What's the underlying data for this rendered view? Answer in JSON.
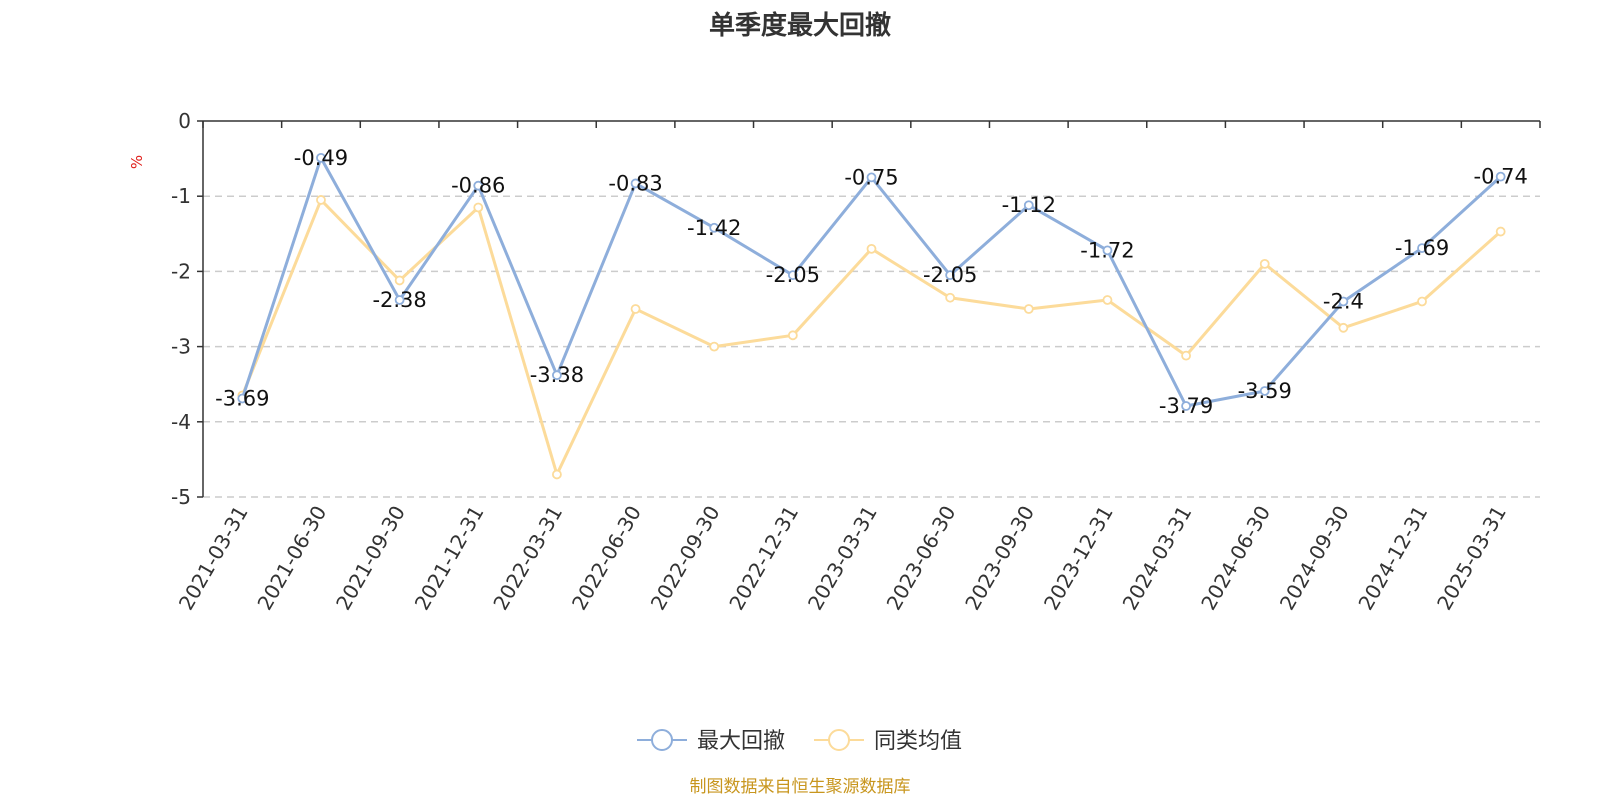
{
  "chart_data": {
    "type": "line",
    "title": "单季度最大回撤",
    "ylabel": "%",
    "ylim": [
      -5,
      0
    ],
    "yticks": [
      "0",
      "-1",
      "-2",
      "-3",
      "-4",
      "-5"
    ],
    "categories": [
      "2021-03-31",
      "2021-06-30",
      "2021-09-30",
      "2021-12-31",
      "2022-03-31",
      "2022-06-30",
      "2022-09-30",
      "2022-12-31",
      "2023-03-31",
      "2023-06-30",
      "2023-09-30",
      "2023-12-31",
      "2024-03-31",
      "2024-06-30",
      "2024-09-30",
      "2024-12-31",
      "2025-03-31"
    ],
    "series": [
      {
        "name": "最大回撤",
        "color": "#8eaedb",
        "values": [
          -3.69,
          -0.49,
          -2.38,
          -0.86,
          -3.38,
          -0.83,
          -1.42,
          -2.05,
          -0.75,
          -2.05,
          -1.12,
          -1.72,
          -3.79,
          -3.59,
          -2.4,
          -1.69,
          -0.74
        ],
        "labels": [
          "-3.69",
          "-0.49",
          "-2.38",
          "-0.86",
          "-3.38",
          "-0.83",
          "-1.42",
          "-2.05",
          "-0.75",
          "-2.05",
          "-1.12",
          "-1.72",
          "-3.79",
          "-3.59",
          "-2.4",
          "-1.69",
          "-0.74"
        ]
      },
      {
        "name": "同类均值",
        "color": "#fcdb9a",
        "values": [
          -3.65,
          -1.05,
          -2.12,
          -1.15,
          -4.7,
          -2.5,
          -3.0,
          -2.85,
          -1.7,
          -2.35,
          -2.5,
          -2.38,
          -3.12,
          -1.9,
          -2.75,
          -2.4,
          -1.47
        ]
      }
    ],
    "grid": "horizontal-dashed",
    "legend_position": "bottom-center",
    "source_note": "制图数据来自恒生聚源数据库"
  }
}
